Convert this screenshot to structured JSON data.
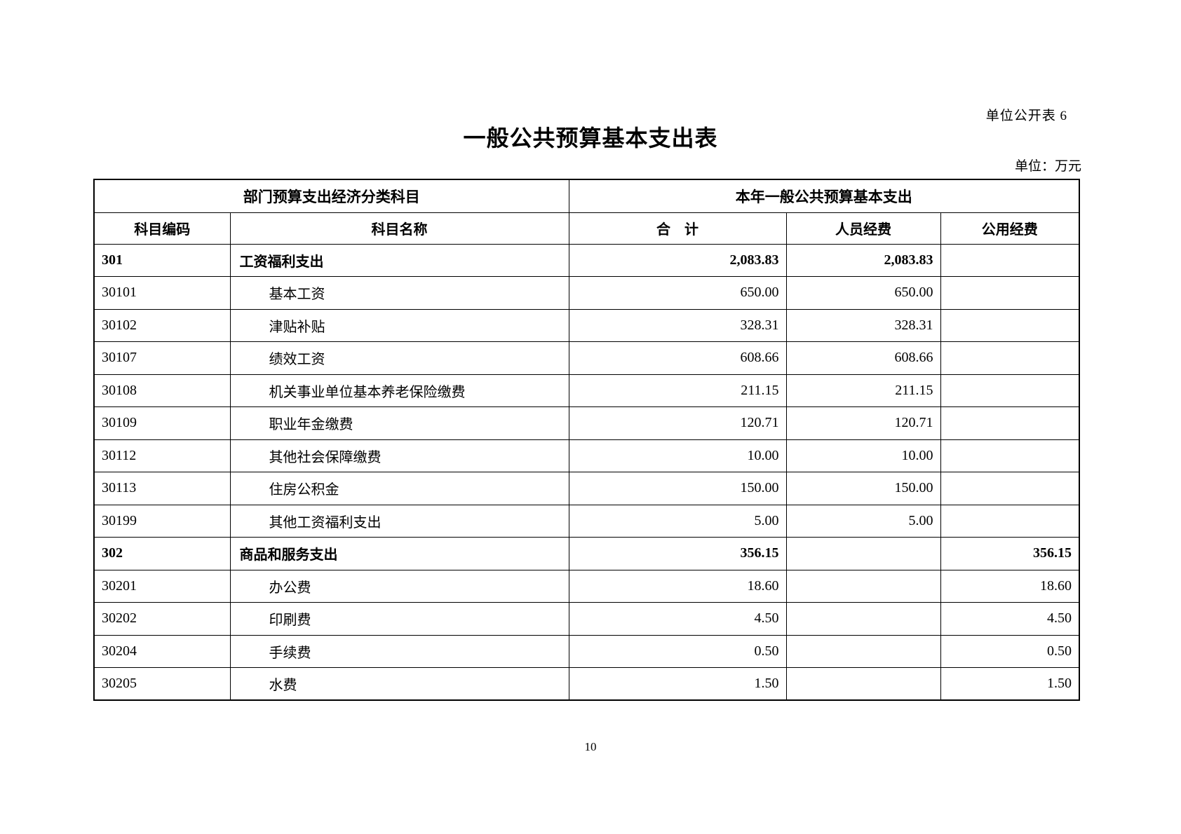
{
  "page": {
    "table_label": "单位公开表 6",
    "title": "一般公共预算基本支出表",
    "unit_note": "单位：万元",
    "page_number": "10"
  },
  "table": {
    "header": {
      "group_left": "部门预算支出经济分类科目",
      "group_right": "本年一般公共预算基本支出",
      "col_code": "科目编码",
      "col_name": "科目名称",
      "col_total": "合　计",
      "col_personnel": "人员经费",
      "col_public": "公用经费"
    },
    "rows": [
      {
        "code": "301",
        "name": "工资福利支出",
        "total": "2,083.83",
        "personnel": "2,083.83",
        "public": "",
        "bold": true,
        "indent": false
      },
      {
        "code": "30101",
        "name": "基本工资",
        "total": "650.00",
        "personnel": "650.00",
        "public": "",
        "bold": false,
        "indent": true
      },
      {
        "code": "30102",
        "name": "津贴补贴",
        "total": "328.31",
        "personnel": "328.31",
        "public": "",
        "bold": false,
        "indent": true
      },
      {
        "code": "30107",
        "name": "绩效工资",
        "total": "608.66",
        "personnel": "608.66",
        "public": "",
        "bold": false,
        "indent": true
      },
      {
        "code": "30108",
        "name": "机关事业单位基本养老保险缴费",
        "total": "211.15",
        "personnel": "211.15",
        "public": "",
        "bold": false,
        "indent": true
      },
      {
        "code": "30109",
        "name": "职业年金缴费",
        "total": "120.71",
        "personnel": "120.71",
        "public": "",
        "bold": false,
        "indent": true
      },
      {
        "code": "30112",
        "name": "其他社会保障缴费",
        "total": "10.00",
        "personnel": "10.00",
        "public": "",
        "bold": false,
        "indent": true
      },
      {
        "code": "30113",
        "name": "住房公积金",
        "total": "150.00",
        "personnel": "150.00",
        "public": "",
        "bold": false,
        "indent": true
      },
      {
        "code": "30199",
        "name": "其他工资福利支出",
        "total": "5.00",
        "personnel": "5.00",
        "public": "",
        "bold": false,
        "indent": true
      },
      {
        "code": "302",
        "name": "商品和服务支出",
        "total": "356.15",
        "personnel": "",
        "public": "356.15",
        "bold": true,
        "indent": false
      },
      {
        "code": "30201",
        "name": "办公费",
        "total": "18.60",
        "personnel": "",
        "public": "18.60",
        "bold": false,
        "indent": true
      },
      {
        "code": "30202",
        "name": "印刷费",
        "total": "4.50",
        "personnel": "",
        "public": "4.50",
        "bold": false,
        "indent": true
      },
      {
        "code": "30204",
        "name": "手续费",
        "total": "0.50",
        "personnel": "",
        "public": "0.50",
        "bold": false,
        "indent": true
      },
      {
        "code": "30205",
        "name": "水费",
        "total": "1.50",
        "personnel": "",
        "public": "1.50",
        "bold": false,
        "indent": true
      }
    ]
  }
}
